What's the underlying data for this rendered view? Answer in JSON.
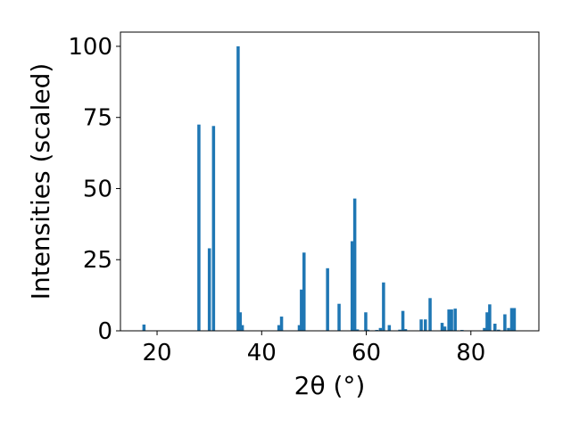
{
  "chart_data": {
    "type": "bar",
    "title": "",
    "xlabel": "2θ (°)",
    "ylabel": "Intensities (scaled)",
    "xlim": [
      13,
      93
    ],
    "ylim": [
      0,
      105
    ],
    "x_ticks": [
      20,
      40,
      60,
      80
    ],
    "y_ticks": [
      0,
      25,
      50,
      75,
      100
    ],
    "bar_width": 0.6,
    "color": "#1f77b4",
    "grid": false,
    "series": [
      {
        "x": [
          17.5,
          28.0,
          30.0,
          30.8,
          35.5,
          35.9,
          36.3,
          43.3,
          43.8,
          47.2,
          47.6,
          48.1,
          52.6,
          54.8,
          57.3,
          57.8,
          58.3,
          59.9,
          60.3,
          62.0,
          62.7,
          63.3,
          64.4,
          66.4,
          67.0,
          67.5,
          70.5,
          71.3,
          72.2,
          74.5,
          75.0,
          75.8,
          76.3,
          77.0,
          78.3,
          82.6,
          83.1,
          83.6,
          84.6,
          85.3,
          86.5,
          87.2,
          87.8,
          88.3
        ],
        "values": [
          2.2,
          72.5,
          29.0,
          72.0,
          100.0,
          6.5,
          2.0,
          2.0,
          5.0,
          2.0,
          14.5,
          27.5,
          22.0,
          9.5,
          31.5,
          46.5,
          0.5,
          6.5,
          0.4,
          0.3,
          1.0,
          17.0,
          2.0,
          0.4,
          7.0,
          0.6,
          4.0,
          4.0,
          11.5,
          2.8,
          1.5,
          7.5,
          7.5,
          7.8,
          0.3,
          1.0,
          6.5,
          9.3,
          2.5,
          0.4,
          5.8,
          1.0,
          8.0,
          8.0
        ]
      }
    ]
  }
}
